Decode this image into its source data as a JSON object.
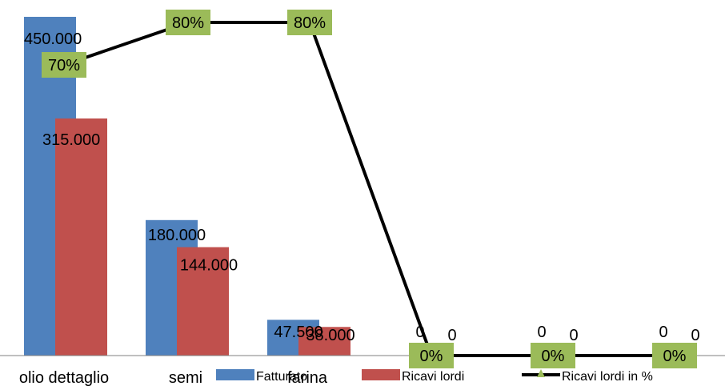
{
  "chart_data": {
    "type": "bar",
    "categories": [
      "olio dettaglio",
      "semi",
      "farina",
      "",
      "",
      ""
    ],
    "series": [
      {
        "name": "Fatturato",
        "type": "bar",
        "color": "#4F81BD",
        "values": [
          450000,
          180000,
          47500,
          0,
          0,
          0
        ],
        "labels": [
          "450.000",
          "180.000",
          "47.500",
          "0",
          "0",
          "0"
        ]
      },
      {
        "name": "Ricavi lordi",
        "type": "bar",
        "color": "#C0504D",
        "values": [
          315000,
          144000,
          38000,
          0,
          0,
          0
        ],
        "labels": [
          "315.000",
          "144.000",
          "38.000",
          "0",
          "0",
          "0"
        ]
      },
      {
        "name": "Ricavi lordi in %",
        "type": "line",
        "color": "#000000",
        "marker_color": "#9BBB59",
        "label_fill": "#9BBB59",
        "values": [
          70,
          80,
          80,
          0,
          0,
          0
        ],
        "labels": [
          "70%",
          "80%",
          "80%",
          "0%",
          "0%",
          "0%"
        ]
      }
    ],
    "title": "",
    "xlabel": "",
    "ylabel": "",
    "ylim": [
      0,
      450000
    ],
    "y2lim": [
      0,
      80
    ],
    "grid": false,
    "legend": "bottom"
  }
}
